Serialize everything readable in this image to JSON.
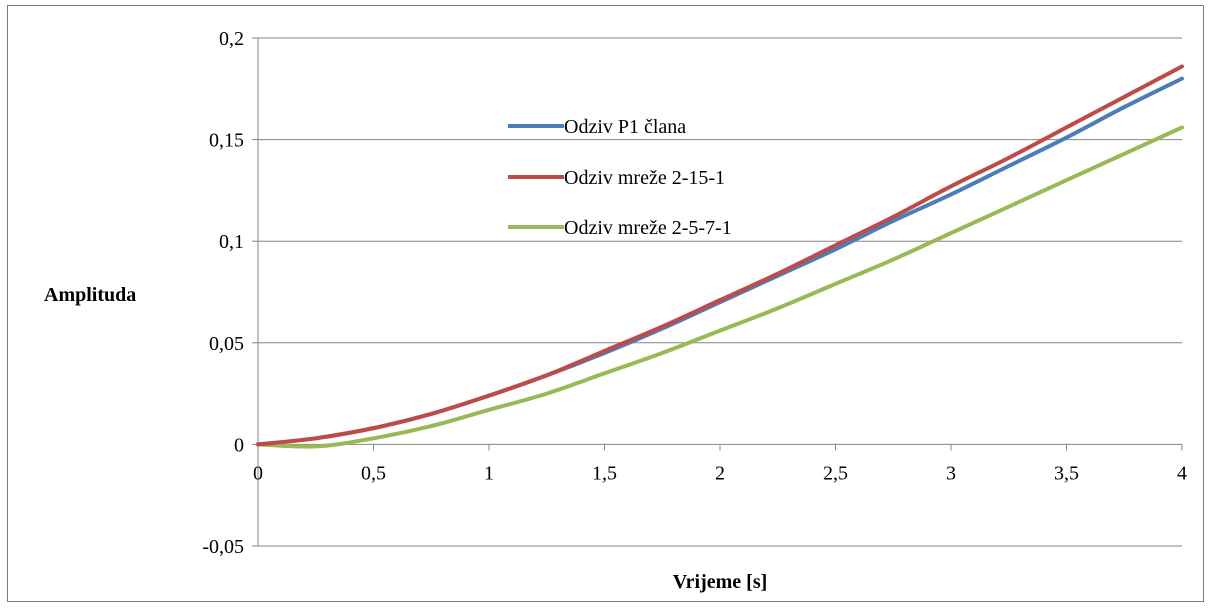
{
  "chart_data": {
    "type": "line",
    "title": "",
    "xlabel": "Vrijeme [s]",
    "ylabel": "Amplituda",
    "xlim": [
      0,
      4
    ],
    "ylim": [
      -0.05,
      0.2
    ],
    "x_ticks": [
      0,
      0.5,
      1,
      1.5,
      2,
      2.5,
      3,
      3.5,
      4
    ],
    "x_tick_labels": [
      "0",
      "0,5",
      "1",
      "1,5",
      "2",
      "2,5",
      "3",
      "3,5",
      "4"
    ],
    "y_ticks": [
      -0.05,
      0,
      0.05,
      0.1,
      0.15,
      0.2
    ],
    "y_tick_labels": [
      "-0,05",
      "0",
      "0,05",
      "0,1",
      "0,15",
      "0,2"
    ],
    "grid": "horizontal",
    "legend_position": "top-center",
    "x": [
      0,
      0.25,
      0.5,
      0.75,
      1,
      1.25,
      1.5,
      1.75,
      2,
      2.25,
      2.5,
      2.75,
      3,
      3.25,
      3.5,
      3.75,
      4
    ],
    "series": [
      {
        "name": "Odziv P1 člana",
        "color": "#4a7ebb",
        "values": [
          0,
          0.003,
          0.008,
          0.015,
          0.024,
          0.034,
          0.045,
          0.057,
          0.07,
          0.083,
          0.096,
          0.11,
          0.123,
          0.137,
          0.151,
          0.166,
          0.18
        ]
      },
      {
        "name": "Odziv mreže 2-15-1",
        "color": "#be4b48",
        "values": [
          0,
          0.003,
          0.008,
          0.015,
          0.024,
          0.034,
          0.046,
          0.058,
          0.071,
          0.084,
          0.098,
          0.112,
          0.127,
          0.141,
          0.156,
          0.171,
          0.186
        ]
      },
      {
        "name": "Odziv mreže 2-5-7-1",
        "color": "#98b954",
        "values": [
          0,
          -0.001,
          0.003,
          0.009,
          0.017,
          0.025,
          0.035,
          0.045,
          0.056,
          0.067,
          0.079,
          0.091,
          0.104,
          0.117,
          0.13,
          0.143,
          0.156
        ]
      }
    ]
  },
  "colors": {
    "gridline": "#868686",
    "axis": "#868686",
    "border": "#7f7f7f"
  }
}
